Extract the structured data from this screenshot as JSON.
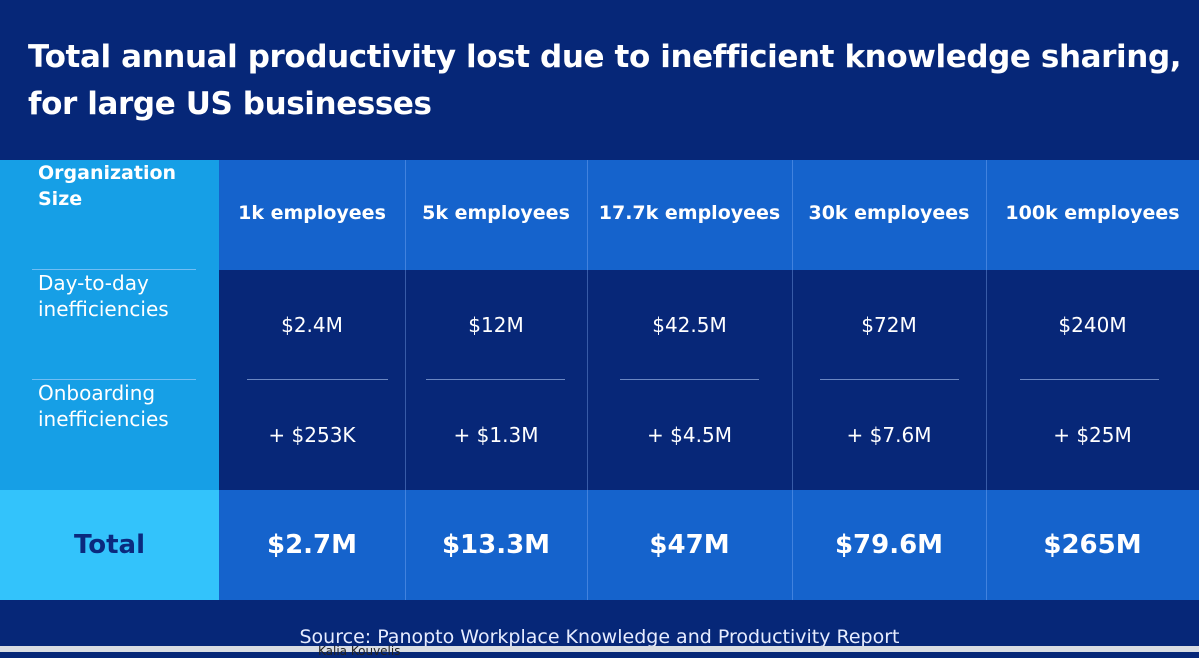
{
  "title_lines": [
    "Total annual productivity lost due to inefficient knowledge sharing,",
    "for large US businesses"
  ],
  "colors": {
    "background": "#062778",
    "header_col": "#169fe6",
    "total_label": "#33c3fb",
    "header_row": "#1563cc",
    "total_text": "#0b2a7e"
  },
  "chart_data": {
    "type": "table",
    "title": "Total annual productivity lost due to inefficient knowledge sharing, for large US businesses",
    "row_header_label": [
      "Organization",
      "Size"
    ],
    "columns": [
      "1k employees",
      "5k employees",
      "17.7k employees",
      "30k employees",
      "100k employees"
    ],
    "rows": [
      {
        "label": [
          "Day-to-day",
          "inefficiencies"
        ],
        "values": [
          "$2.4M",
          "$12M",
          "$42.5M",
          "$72M",
          "$240M"
        ]
      },
      {
        "label": [
          "Onboarding",
          "inefficiencies"
        ],
        "values": [
          "+ $253K",
          "+ $1.3M",
          "+ $4.5M",
          "+ $7.6M",
          "+ $25M"
        ]
      }
    ],
    "total": {
      "label": "Total",
      "values": [
        "$2.7M",
        "$13.3M",
        "$47M",
        "$79.6M",
        "$265M"
      ]
    }
  },
  "source": {
    "prefix": "Source: ",
    "name": "Panopto Workplace Knowledge and Productivity Report"
  },
  "footer_fragment": "Kalia Kouvelis"
}
